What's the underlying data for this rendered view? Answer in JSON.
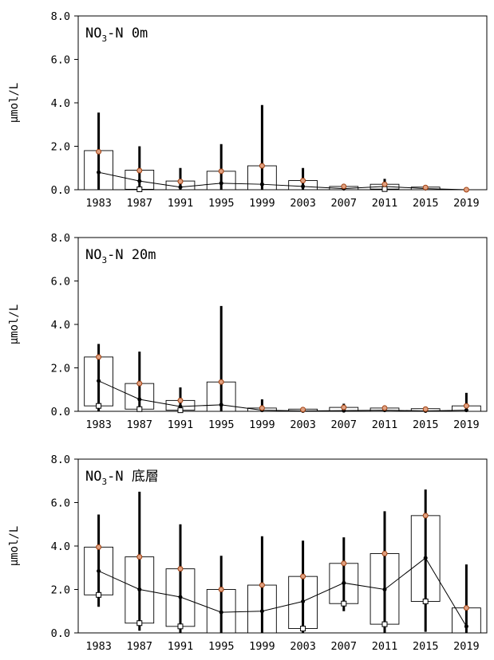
{
  "chart_data": [
    {
      "type": "bar",
      "title_parts": [
        "NO",
        "3",
        "-N 0m"
      ],
      "ylabel": "μmol/L",
      "ylim": [
        0,
        8
      ],
      "y_ticks": [
        "0.0",
        "2.0",
        "4.0",
        "6.0",
        "8.0"
      ],
      "categories": [
        "1983",
        "1987",
        "1991",
        "1995",
        "1999",
        "2003",
        "2007",
        "2011",
        "2015",
        "2019"
      ],
      "bar_top": [
        1.8,
        0.9,
        0.4,
        0.85,
        1.1,
        0.42,
        0.15,
        0.25,
        0.12,
        0.0
      ],
      "bar_bottom": [
        0.0,
        0.02,
        0.0,
        0.0,
        0.0,
        0.0,
        0.0,
        0.03,
        0.0,
        0.0
      ],
      "mean": [
        1.75,
        0.88,
        0.38,
        0.85,
        1.1,
        0.42,
        0.15,
        0.25,
        0.1,
        0.0
      ],
      "line": [
        0.8,
        0.4,
        0.12,
        0.3,
        0.25,
        0.15,
        0.05,
        0.15,
        0.05,
        0.0
      ],
      "err_high": [
        3.55,
        2.0,
        1.0,
        2.1,
        3.9,
        1.0,
        0.2,
        0.5,
        0.2,
        0.0
      ],
      "err_low": [
        0.0,
        0.0,
        0.0,
        0.0,
        0.0,
        0.0,
        0.0,
        0.0,
        0.0,
        0.0
      ],
      "colors": {
        "mean_marker": "#e0a080",
        "mean_stroke": "#a04010"
      }
    },
    {
      "type": "bar",
      "title_parts": [
        "NO",
        "3",
        "-N 20m"
      ],
      "ylabel": "μmol/L",
      "ylim": [
        0,
        8
      ],
      "y_ticks": [
        "0.0",
        "2.0",
        "4.0",
        "6.0",
        "8.0"
      ],
      "categories": [
        "1983",
        "1987",
        "1991",
        "1995",
        "1999",
        "2003",
        "2007",
        "2011",
        "2015",
        "2019"
      ],
      "bar_top": [
        2.5,
        1.28,
        0.5,
        1.35,
        0.15,
        0.1,
        0.18,
        0.15,
        0.12,
        0.25
      ],
      "bar_bottom": [
        0.25,
        0.1,
        0.05,
        0.0,
        0.0,
        0.0,
        0.0,
        0.0,
        0.0,
        0.0
      ],
      "mean": [
        2.5,
        1.28,
        0.5,
        1.35,
        0.15,
        0.08,
        0.18,
        0.15,
        0.1,
        0.25
      ],
      "line": [
        1.4,
        0.55,
        0.22,
        0.3,
        0.05,
        0.02,
        0.03,
        0.05,
        0.02,
        0.05
      ],
      "err_high": [
        3.1,
        2.75,
        1.1,
        4.85,
        0.55,
        0.15,
        0.35,
        0.25,
        0.2,
        0.85
      ],
      "err_low": [
        0.0,
        0.0,
        0.0,
        0.0,
        0.0,
        0.0,
        0.0,
        0.0,
        0.0,
        0.0
      ],
      "colors": {
        "mean_marker": "#e0a080",
        "mean_stroke": "#a04010"
      }
    },
    {
      "type": "bar",
      "title_parts": [
        "NO",
        "3",
        "-N 底層"
      ],
      "ylabel": "μmol/L",
      "ylim": [
        0,
        8
      ],
      "y_ticks": [
        "0.0",
        "2.0",
        "4.0",
        "6.0",
        "8.0"
      ],
      "categories": [
        "1983",
        "1987",
        "1991",
        "1995",
        "1999",
        "2003",
        "2007",
        "2011",
        "2015",
        "2019"
      ],
      "bar_top": [
        3.95,
        3.5,
        2.95,
        2.0,
        2.2,
        2.6,
        3.2,
        3.65,
        5.4,
        1.15
      ],
      "bar_bottom": [
        1.75,
        0.45,
        0.3,
        0.0,
        0.0,
        0.2,
        1.35,
        0.4,
        1.45,
        0.0
      ],
      "mean": [
        3.95,
        3.5,
        2.95,
        2.0,
        2.2,
        2.6,
        3.2,
        3.65,
        5.4,
        1.15
      ],
      "line": [
        2.85,
        2.0,
        1.65,
        0.95,
        1.0,
        1.45,
        2.3,
        2.0,
        3.45,
        0.3
      ],
      "err_high": [
        5.45,
        6.5,
        5.0,
        3.55,
        4.45,
        4.25,
        4.4,
        5.6,
        6.6,
        3.15
      ],
      "err_low": [
        1.2,
        0.1,
        0.0,
        0.0,
        0.0,
        0.0,
        1.0,
        0.0,
        0.05,
        0.0
      ],
      "colors": {
        "mean_marker": "#e0a080",
        "mean_stroke": "#a04010"
      }
    }
  ]
}
